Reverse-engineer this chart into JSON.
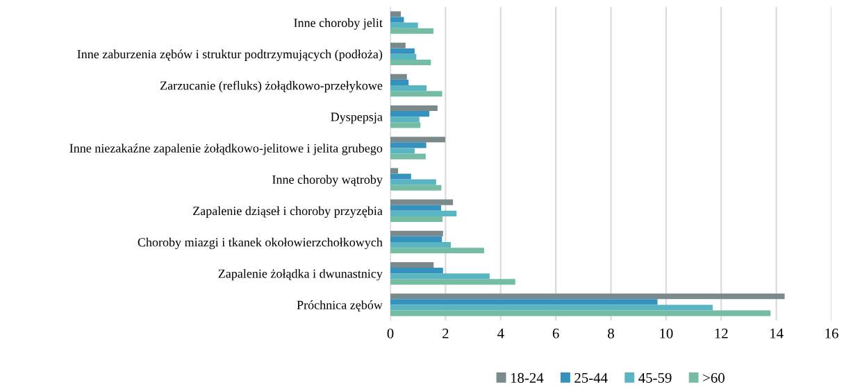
{
  "chart_data": {
    "type": "bar",
    "orientation": "horizontal",
    "categories": [
      "Inne choroby jelit",
      "Inne zaburzenia zębów i struktur podtrzymujących (podłoża)",
      "Zarzucanie (refluks) żołądkowo-przełykowe",
      "Dyspepsja",
      "Inne niezakaźne zapalenie żołądkowo-jelitowe i jelita grubego",
      "Inne choroby wątroby",
      "Zapalenie dziąseł i choroby przyzębia",
      "Choroby miazgi i tkanek okołowierzchołkowych",
      "Zapalenie żołądka i dwunastnicy",
      "Próchnica zębów"
    ],
    "series": [
      {
        "name": "18-24",
        "color": "#7a8a8c",
        "values": [
          0.38,
          0.55,
          0.6,
          1.71,
          1.99,
          0.28,
          2.27,
          1.91,
          1.57,
          14.3
        ]
      },
      {
        "name": "25-44",
        "color": "#3592bf",
        "values": [
          0.49,
          0.88,
          0.66,
          1.41,
          1.3,
          0.75,
          1.84,
          1.87,
          1.91,
          9.69
        ]
      },
      {
        "name": "45-59",
        "color": "#5ab5c2",
        "values": [
          1.0,
          0.94,
          1.31,
          1.05,
          0.88,
          1.66,
          2.4,
          2.19,
          3.6,
          11.69
        ]
      },
      {
        "name": ">60",
        "color": "#74bda4",
        "values": [
          1.56,
          1.47,
          1.88,
          1.09,
          1.28,
          1.85,
          1.89,
          3.4,
          4.53,
          13.79
        ]
      }
    ],
    "xlim": [
      0,
      16
    ],
    "xticks": [
      0,
      2,
      4,
      6,
      8,
      10,
      12,
      14,
      16
    ],
    "grid": "x",
    "legend": "bottom"
  }
}
